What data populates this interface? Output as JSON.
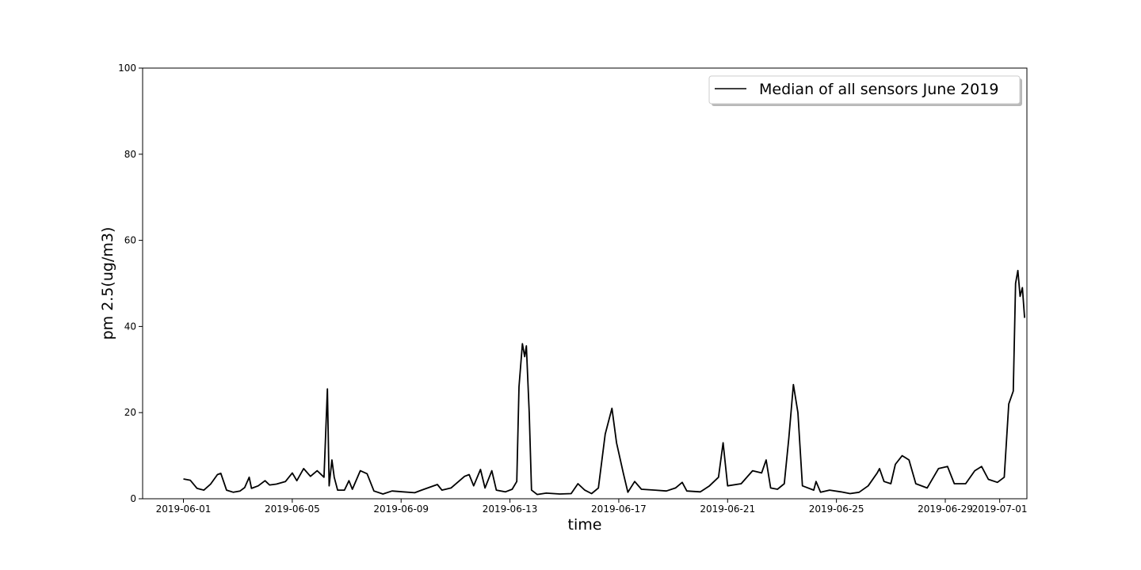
{
  "chart_data": {
    "type": "line",
    "title": "",
    "xlabel": "time",
    "ylabel": "pm 2.5(ug/m3)",
    "ylim": [
      0,
      100
    ],
    "xlim": [
      "2019-05-30T12:00",
      "2019-07-02T00:00"
    ],
    "x_ticks": [
      "2019-06-01",
      "2019-06-05",
      "2019-06-09",
      "2019-06-13",
      "2019-06-17",
      "2019-06-21",
      "2019-06-25",
      "2019-06-29",
      "2019-07-01"
    ],
    "y_ticks": [
      0,
      20,
      40,
      60,
      80,
      100
    ],
    "grid": false,
    "legend_position": "top-right",
    "series": [
      {
        "name": "Median of all sensors June 2019",
        "color": "#000000",
        "points": [
          [
            "2019-06-01T00:00",
            4.6
          ],
          [
            "2019-06-01T06:00",
            4.3
          ],
          [
            "2019-06-01T12:00",
            2.4
          ],
          [
            "2019-06-01T18:00",
            2.0
          ],
          [
            "2019-06-02T00:00",
            3.4
          ],
          [
            "2019-06-02T06:00",
            5.6
          ],
          [
            "2019-06-02T09:00",
            5.9
          ],
          [
            "2019-06-02T14:00",
            2.0
          ],
          [
            "2019-06-02T20:00",
            1.5
          ],
          [
            "2019-06-03T02:00",
            1.8
          ],
          [
            "2019-06-03T06:00",
            2.6
          ],
          [
            "2019-06-03T10:00",
            5.0
          ],
          [
            "2019-06-03T12:00",
            2.4
          ],
          [
            "2019-06-03T18:00",
            3.0
          ],
          [
            "2019-06-04T00:00",
            4.2
          ],
          [
            "2019-06-04T04:00",
            3.2
          ],
          [
            "2019-06-04T10:00",
            3.4
          ],
          [
            "2019-06-04T18:00",
            4.0
          ],
          [
            "2019-06-05T00:00",
            6.0
          ],
          [
            "2019-06-05T04:00",
            4.2
          ],
          [
            "2019-06-05T10:00",
            7.0
          ],
          [
            "2019-06-05T16:00",
            5.2
          ],
          [
            "2019-06-05T22:00",
            6.5
          ],
          [
            "2019-06-06T04:00",
            5.0
          ],
          [
            "2019-06-06T07:00",
            25.5
          ],
          [
            "2019-06-06T08:30",
            3.0
          ],
          [
            "2019-06-06T11:00",
            9.0
          ],
          [
            "2019-06-06T13:00",
            5.0
          ],
          [
            "2019-06-06T16:00",
            2.0
          ],
          [
            "2019-06-06T22:00",
            2.0
          ],
          [
            "2019-06-07T02:00",
            4.2
          ],
          [
            "2019-06-07T05:00",
            2.2
          ],
          [
            "2019-06-07T12:00",
            6.5
          ],
          [
            "2019-06-07T18:00",
            5.8
          ],
          [
            "2019-06-08T00:00",
            1.8
          ],
          [
            "2019-06-08T08:00",
            1.1
          ],
          [
            "2019-06-08T16:00",
            1.8
          ],
          [
            "2019-06-09T02:00",
            1.6
          ],
          [
            "2019-06-09T12:00",
            1.4
          ],
          [
            "2019-06-09T18:00",
            2.0
          ],
          [
            "2019-06-10T08:00",
            3.3
          ],
          [
            "2019-06-10T12:00",
            2.0
          ],
          [
            "2019-06-10T20:00",
            2.5
          ],
          [
            "2019-06-11T08:00",
            5.2
          ],
          [
            "2019-06-11T12:00",
            5.6
          ],
          [
            "2019-06-11T16:00",
            3.0
          ],
          [
            "2019-06-11T22:00",
            6.8
          ],
          [
            "2019-06-12T02:00",
            2.5
          ],
          [
            "2019-06-12T08:00",
            6.5
          ],
          [
            "2019-06-12T12:00",
            2.0
          ],
          [
            "2019-06-12T20:00",
            1.6
          ],
          [
            "2019-06-13T02:00",
            2.2
          ],
          [
            "2019-06-13T06:00",
            4.0
          ],
          [
            "2019-06-13T08:00",
            26.0
          ],
          [
            "2019-06-13T11:00",
            36.0
          ],
          [
            "2019-06-13T13:00",
            33.0
          ],
          [
            "2019-06-13T14:30",
            35.5
          ],
          [
            "2019-06-13T17:00",
            20.0
          ],
          [
            "2019-06-13T19:00",
            2.0
          ],
          [
            "2019-06-14T00:00",
            1.0
          ],
          [
            "2019-06-14T08:00",
            1.3
          ],
          [
            "2019-06-14T20:00",
            1.1
          ],
          [
            "2019-06-15T06:00",
            1.2
          ],
          [
            "2019-06-15T12:00",
            3.5
          ],
          [
            "2019-06-15T18:00",
            2.0
          ],
          [
            "2019-06-16T00:00",
            1.2
          ],
          [
            "2019-06-16T06:00",
            2.5
          ],
          [
            "2019-06-16T12:00",
            15.0
          ],
          [
            "2019-06-16T18:00",
            21.0
          ],
          [
            "2019-06-16T22:00",
            13.0
          ],
          [
            "2019-06-17T04:00",
            6.0
          ],
          [
            "2019-06-17T08:00",
            1.5
          ],
          [
            "2019-06-17T14:00",
            4.0
          ],
          [
            "2019-06-17T20:00",
            2.2
          ],
          [
            "2019-06-18T08:00",
            2.0
          ],
          [
            "2019-06-18T18:00",
            1.8
          ],
          [
            "2019-06-19T02:00",
            2.5
          ],
          [
            "2019-06-19T08:00",
            3.8
          ],
          [
            "2019-06-19T12:00",
            1.8
          ],
          [
            "2019-06-20T00:00",
            1.6
          ],
          [
            "2019-06-20T08:00",
            3.0
          ],
          [
            "2019-06-20T16:00",
            5.0
          ],
          [
            "2019-06-20T20:00",
            13.0
          ],
          [
            "2019-06-21T00:00",
            3.0
          ],
          [
            "2019-06-21T12:00",
            3.5
          ],
          [
            "2019-06-21T22:00",
            6.5
          ],
          [
            "2019-06-22T06:00",
            6.0
          ],
          [
            "2019-06-22T10:00",
            9.0
          ],
          [
            "2019-06-22T14:00",
            2.5
          ],
          [
            "2019-06-22T20:00",
            2.2
          ],
          [
            "2019-06-23T02:00",
            3.5
          ],
          [
            "2019-06-23T06:00",
            14.0
          ],
          [
            "2019-06-23T10:00",
            26.5
          ],
          [
            "2019-06-23T14:00",
            20.0
          ],
          [
            "2019-06-23T18:00",
            3.0
          ],
          [
            "2019-06-24T04:00",
            2.0
          ],
          [
            "2019-06-24T06:00",
            4.0
          ],
          [
            "2019-06-24T10:00",
            1.5
          ],
          [
            "2019-06-24T18:00",
            2.0
          ],
          [
            "2019-06-25T04:00",
            1.6
          ],
          [
            "2019-06-25T12:00",
            1.2
          ],
          [
            "2019-06-25T20:00",
            1.5
          ],
          [
            "2019-06-26T04:00",
            3.0
          ],
          [
            "2019-06-26T12:00",
            6.0
          ],
          [
            "2019-06-26T14:00",
            7.0
          ],
          [
            "2019-06-26T18:00",
            4.0
          ],
          [
            "2019-06-27T00:00",
            3.5
          ],
          [
            "2019-06-27T04:00",
            8.0
          ],
          [
            "2019-06-27T10:00",
            10.0
          ],
          [
            "2019-06-27T16:00",
            9.0
          ],
          [
            "2019-06-27T22:00",
            3.5
          ],
          [
            "2019-06-28T08:00",
            2.5
          ],
          [
            "2019-06-28T18:00",
            7.0
          ],
          [
            "2019-06-29T02:00",
            7.5
          ],
          [
            "2019-06-29T08:00",
            3.5
          ],
          [
            "2019-06-29T18:00",
            3.5
          ],
          [
            "2019-06-30T02:00",
            6.5
          ],
          [
            "2019-06-30T08:00",
            7.5
          ],
          [
            "2019-06-30T14:00",
            4.5
          ],
          [
            "2019-06-30T22:00",
            3.8
          ],
          [
            "2019-07-01T04:00",
            5.0
          ],
          [
            "2019-07-01T08:00",
            22.0
          ],
          [
            "2019-07-01T12:00",
            25.0
          ],
          [
            "2019-07-01T14:00",
            50.0
          ],
          [
            "2019-07-01T16:00",
            53.0
          ],
          [
            "2019-07-01T18:00",
            47.0
          ],
          [
            "2019-07-01T20:00",
            49.0
          ],
          [
            "2019-07-01T22:00",
            42.0
          ]
        ]
      }
    ]
  }
}
